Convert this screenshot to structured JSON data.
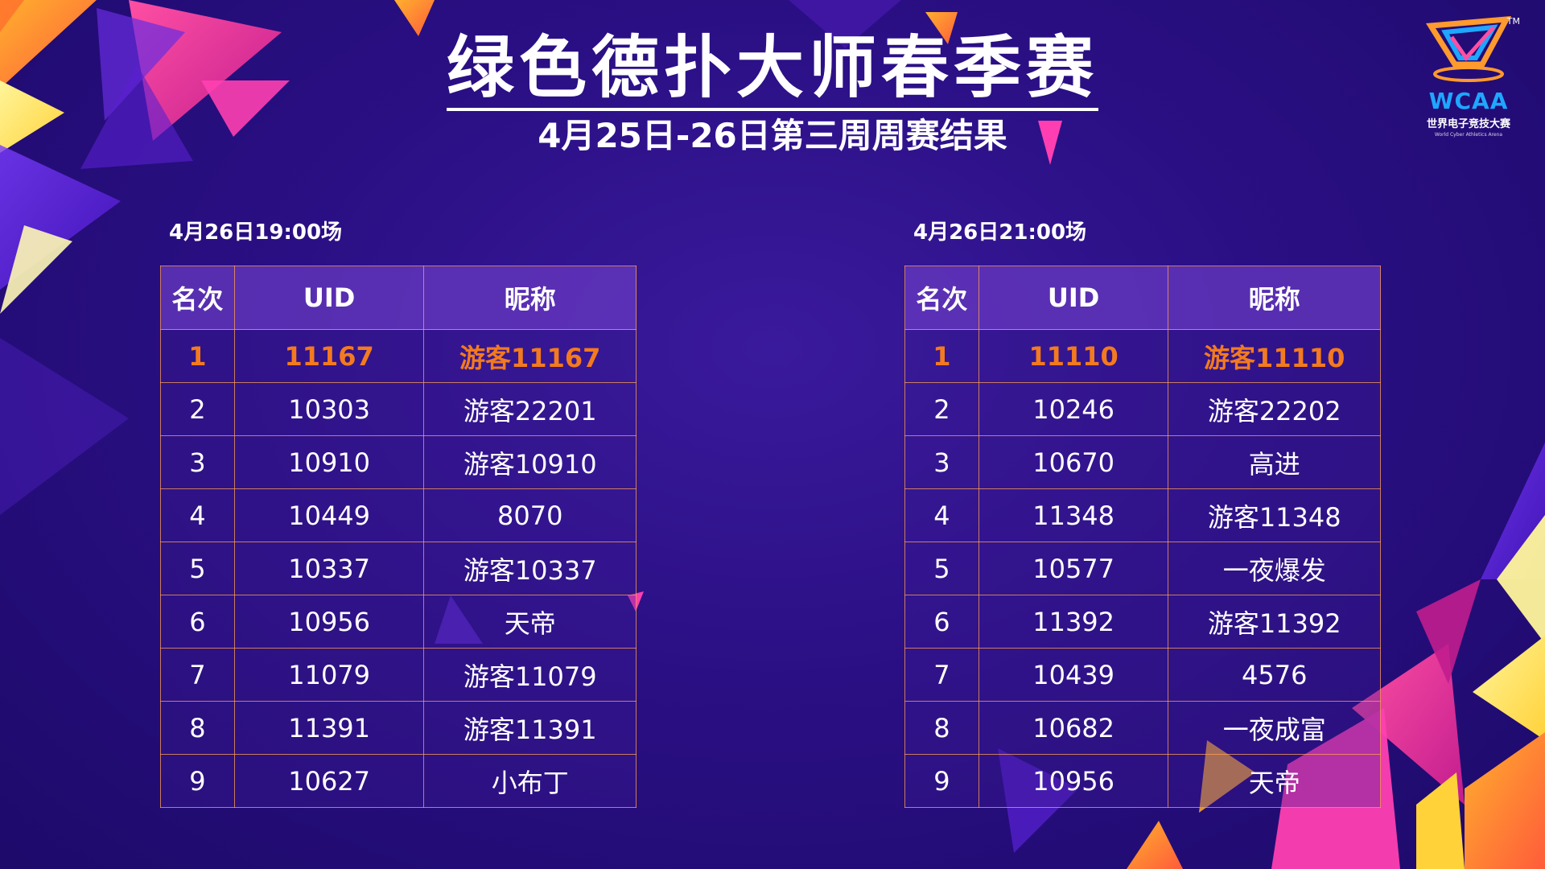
{
  "title": "绿色德扑大师春季赛",
  "subtitle": "4月25日-26日第三周周赛结果",
  "logo": {
    "name": "WCAA",
    "cn_name": "世界电子竞技大赛",
    "en_name": "World Cyber Athletics Arena",
    "tm": "TM"
  },
  "headers": {
    "rank": "名次",
    "uid": "UID",
    "nickname": "昵称"
  },
  "highlight_color": "#f37a1f",
  "sessions": [
    {
      "label": "4月26日19:00场",
      "rows": [
        {
          "rank": "1",
          "uid": "11167",
          "nick": "游客11167"
        },
        {
          "rank": "2",
          "uid": "10303",
          "nick": "游客22201"
        },
        {
          "rank": "3",
          "uid": "10910",
          "nick": "游客10910"
        },
        {
          "rank": "4",
          "uid": "10449",
          "nick": "8070"
        },
        {
          "rank": "5",
          "uid": "10337",
          "nick": "游客10337"
        },
        {
          "rank": "6",
          "uid": "10956",
          "nick": "天帝"
        },
        {
          "rank": "7",
          "uid": "11079",
          "nick": "游客11079"
        },
        {
          "rank": "8",
          "uid": "11391",
          "nick": "游客11391"
        },
        {
          "rank": "9",
          "uid": "10627",
          "nick": "小布丁"
        }
      ]
    },
    {
      "label": "4月26日21:00场",
      "rows": [
        {
          "rank": "1",
          "uid": "11110",
          "nick": "游客11110"
        },
        {
          "rank": "2",
          "uid": "10246",
          "nick": "游客22202"
        },
        {
          "rank": "3",
          "uid": "10670",
          "nick": "高进"
        },
        {
          "rank": "4",
          "uid": "11348",
          "nick": "游客11348"
        },
        {
          "rank": "5",
          "uid": "10577",
          "nick": "一夜爆发"
        },
        {
          "rank": "6",
          "uid": "11392",
          "nick": "游客11392"
        },
        {
          "rank": "7",
          "uid": "10439",
          "nick": "4576"
        },
        {
          "rank": "8",
          "uid": "10682",
          "nick": "一夜成富"
        },
        {
          "rank": "9",
          "uid": "10956",
          "nick": "天帝"
        }
      ]
    }
  ]
}
